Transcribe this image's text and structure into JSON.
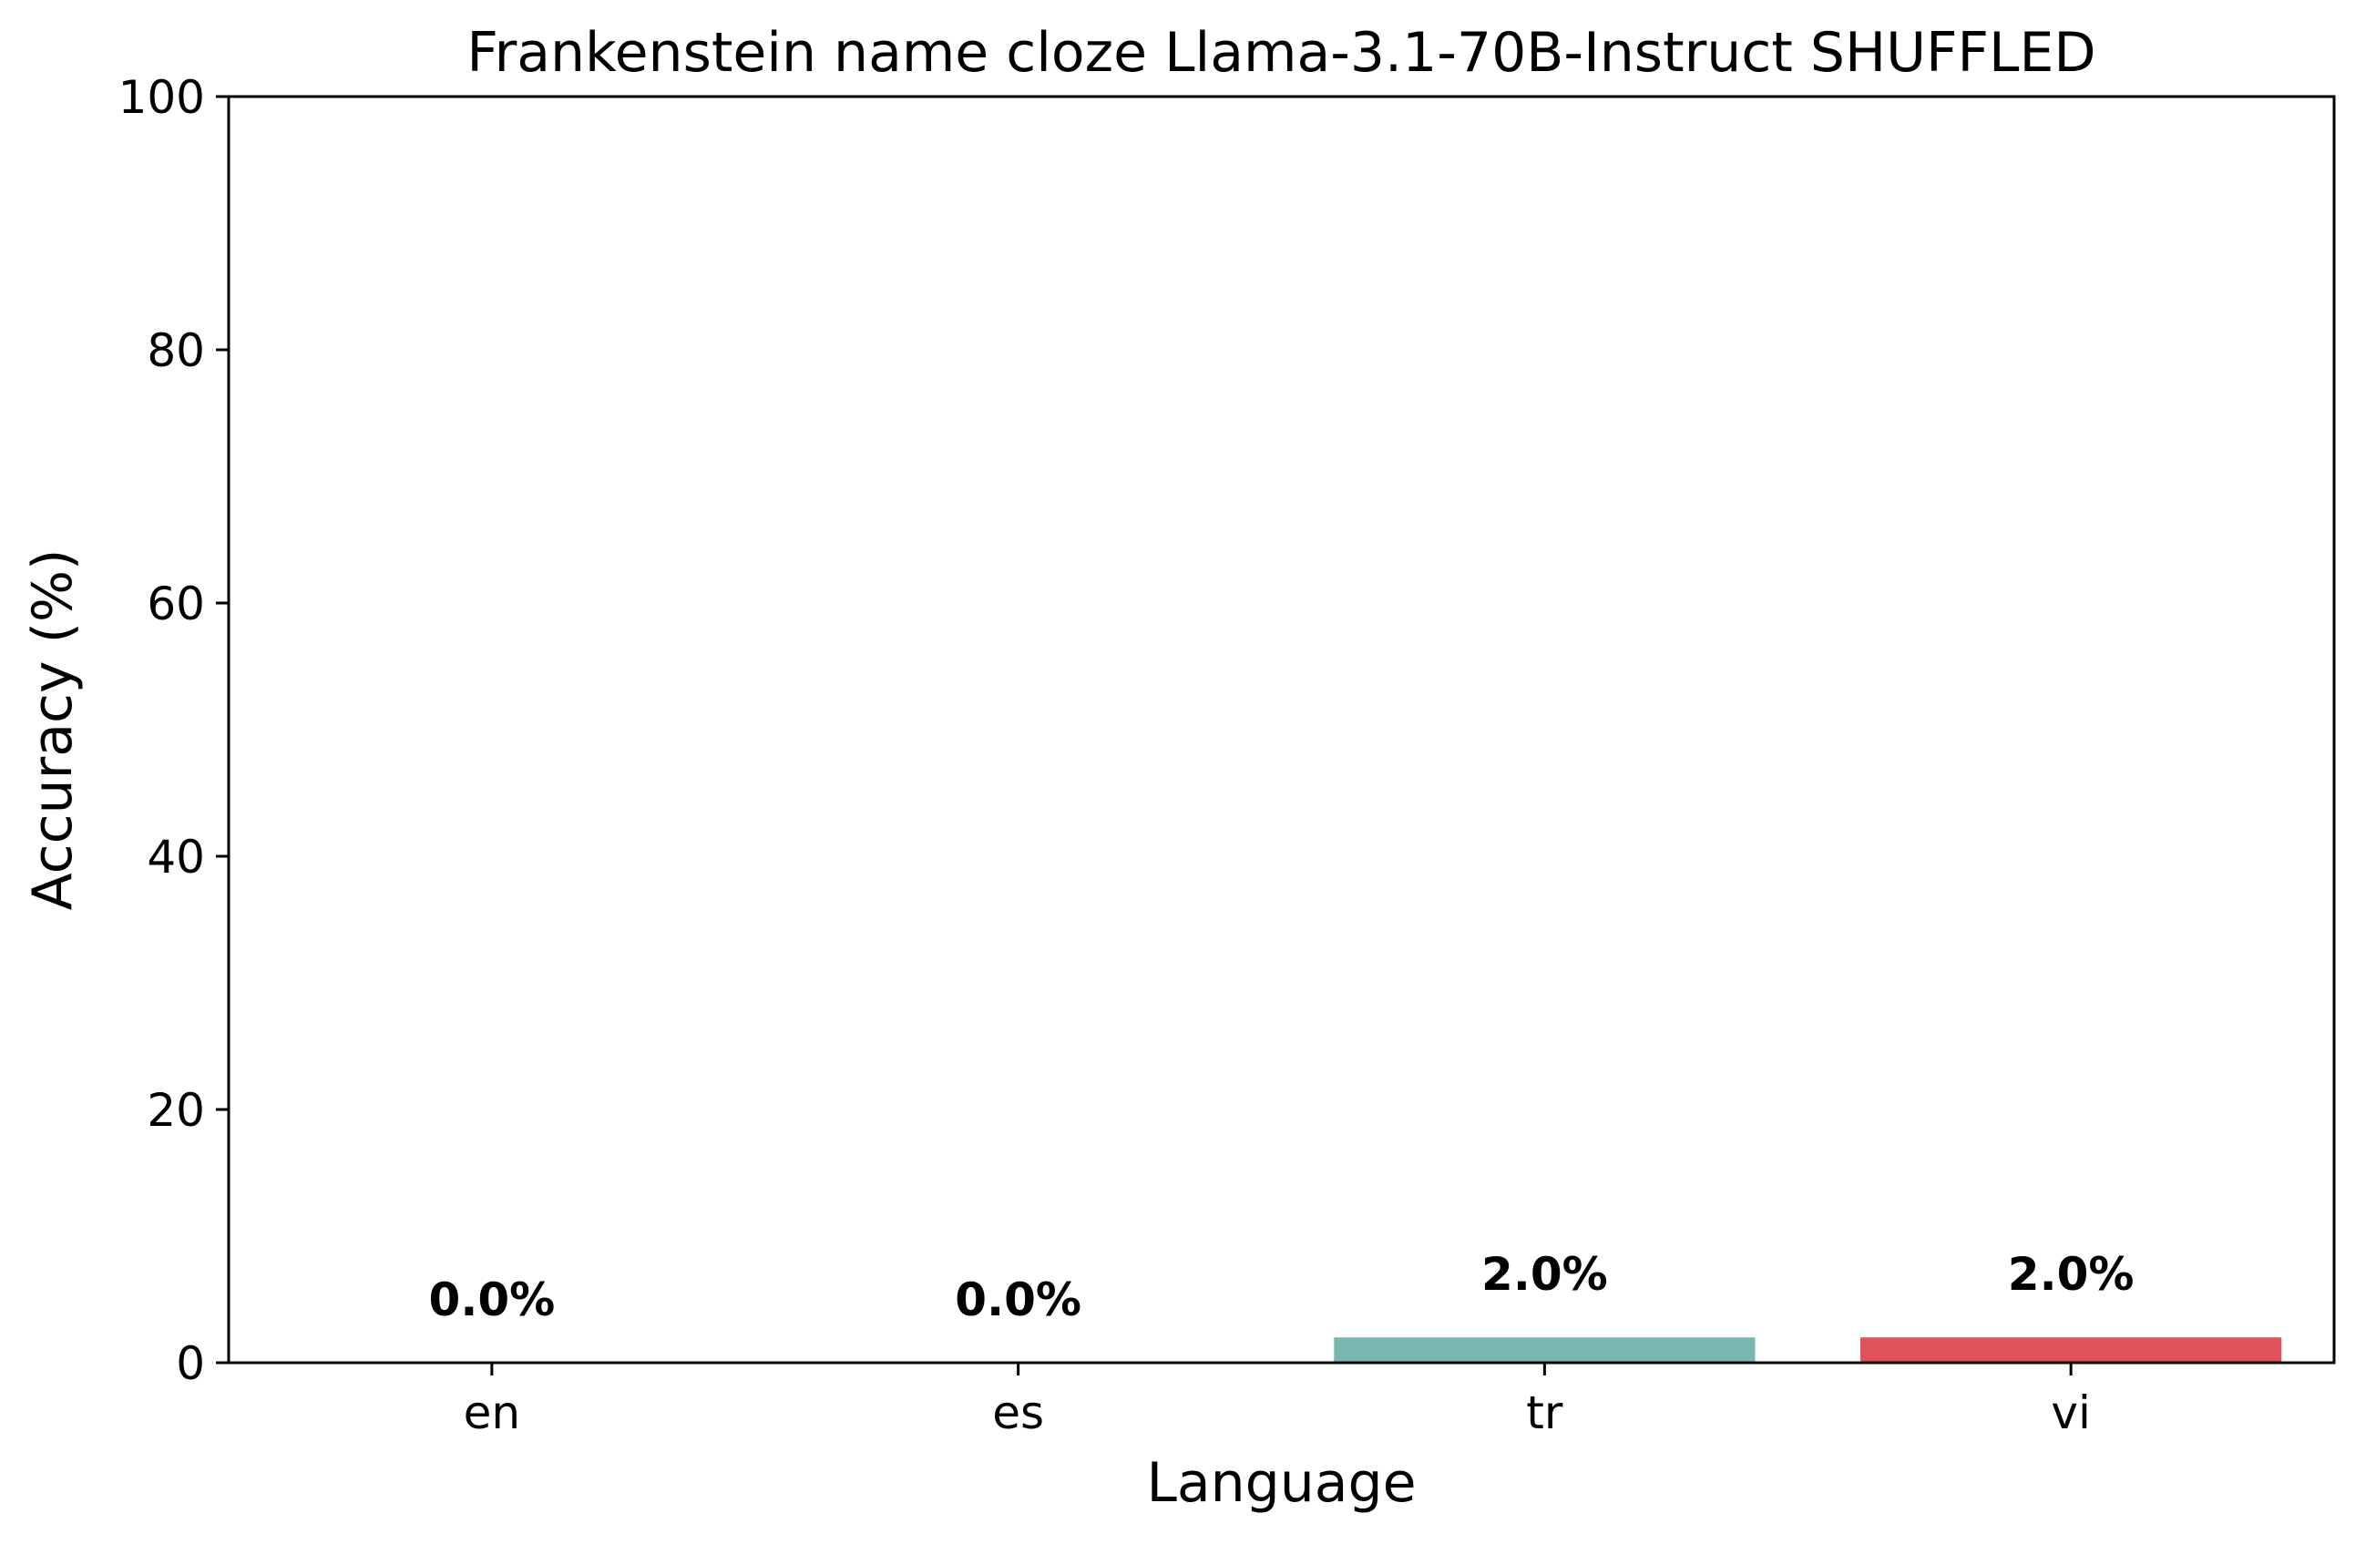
{
  "chart_data": {
    "type": "bar",
    "title": "Frankenstein name cloze Llama-3.1-70B-Instruct SHUFFLED",
    "xlabel": "Language",
    "ylabel": "Accuracy (%)",
    "categories": [
      "en",
      "es",
      "tr",
      "vi"
    ],
    "values": [
      0.0,
      0.0,
      2.0,
      2.0
    ],
    "data_labels": [
      "0.0%",
      "0.0%",
      "2.0%",
      "2.0%"
    ],
    "colors": [
      "#2ba7a0",
      "#f1a83b",
      "#77b7b0",
      "#e0535a"
    ],
    "ylim": [
      0,
      100
    ],
    "yticks": [
      0,
      20,
      40,
      60,
      80,
      100
    ],
    "ytick_labels": [
      "0",
      "20",
      "40",
      "60",
      "80",
      "100"
    ],
    "grid": false,
    "legend": "none"
  }
}
